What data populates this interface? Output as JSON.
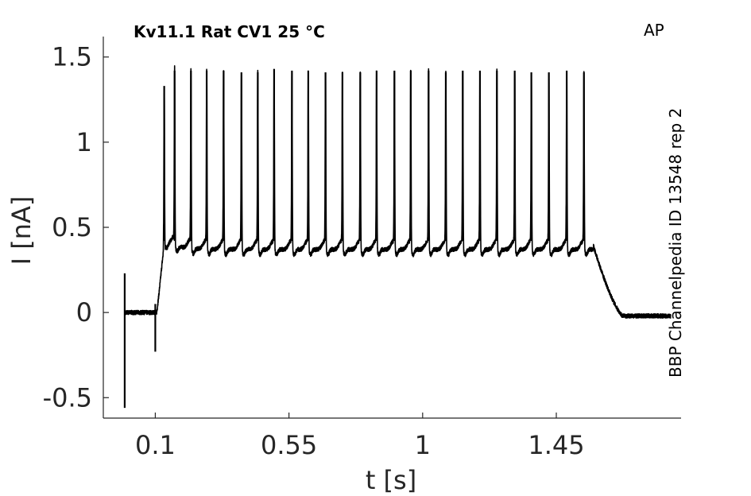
{
  "chart_data": {
    "type": "line",
    "title": "Kv11.1  Rat  CV1  25 °C",
    "corner_label": "AP",
    "side_label": "BBP Channelpedia ID 13548 rep 2",
    "xlabel": "t [s]",
    "ylabel": "I [nA]",
    "xlim": [
      -0.075,
      1.87
    ],
    "ylim": [
      -0.62,
      1.62
    ],
    "xticks": [
      0.1,
      0.55,
      1,
      1.45
    ],
    "xtick_labels": [
      "0.1",
      "0.55",
      "1",
      "1.45"
    ],
    "yticks": [
      -0.5,
      0,
      0.5,
      1,
      1.5
    ],
    "ytick_labels": [
      "-0.5",
      "0",
      "0.5",
      "1",
      "1.5"
    ],
    "grid": false,
    "color": "#000000",
    "series": [
      {
        "baseline_pre": 0.0,
        "step_on_time": 0.105,
        "step_off_time": 1.575,
        "plateau_level": 0.37,
        "baseline_post": -0.02,
        "spike_times": [
          0.13,
          0.165,
          0.22,
          0.273,
          0.33,
          0.39,
          0.445,
          0.5,
          0.56,
          0.615,
          0.673,
          0.73,
          0.79,
          0.845,
          0.905,
          0.96,
          1.02,
          1.078,
          1.135,
          1.193,
          1.25,
          1.31,
          1.366,
          1.425,
          1.485,
          1.543
        ],
        "spike_peaks": [
          1.33,
          1.42,
          1.42,
          1.42,
          1.42,
          1.41,
          1.41,
          1.43,
          1.42,
          1.42,
          1.41,
          1.41,
          1.41,
          1.42,
          1.42,
          1.42,
          1.42,
          1.41,
          1.42,
          1.42,
          1.42,
          1.42,
          1.41,
          1.41,
          1.42,
          1.41
        ],
        "transients": [
          {
            "t": -0.003,
            "min": -0.56,
            "max": 0.23
          },
          {
            "t": 0.1,
            "min": -0.23,
            "max": 0.05
          }
        ]
      }
    ]
  }
}
